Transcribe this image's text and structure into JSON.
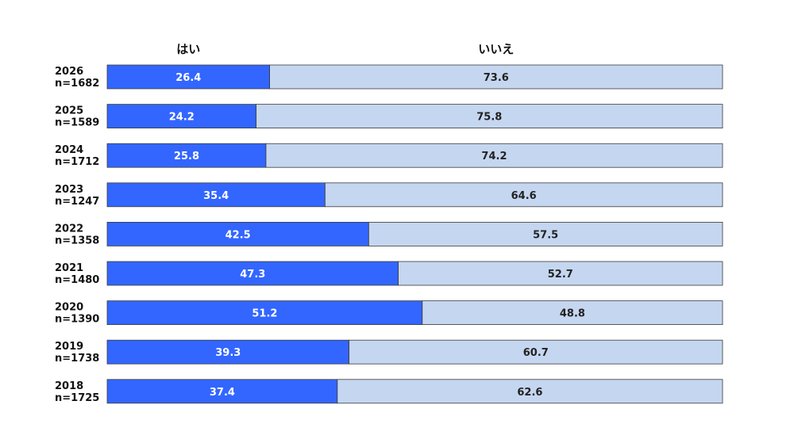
{
  "chart_data": {
    "type": "bar",
    "orientation": "horizontal",
    "stacked": "100%",
    "categories": [
      [
        "2026",
        "n=1682"
      ],
      [
        "2025",
        "n=1589"
      ],
      [
        "2024",
        "n=1712"
      ],
      [
        "2023",
        "n=1247"
      ],
      [
        "2022",
        "n=1358"
      ],
      [
        "2021",
        "n=1480"
      ],
      [
        "2020",
        "n=1390"
      ],
      [
        "2019",
        "n=1738"
      ],
      [
        "2018",
        "n=1725"
      ]
    ],
    "series": [
      {
        "name": "はい",
        "color": "#3366ff",
        "label_color": "#ffffff",
        "values": [
          26.4,
          24.2,
          25.8,
          35.4,
          42.5,
          47.3,
          51.2,
          39.3,
          37.4
        ]
      },
      {
        "name": "いいえ",
        "color": "#c5d6f0",
        "label_color": "#222222",
        "values": [
          73.6,
          75.8,
          74.2,
          64.6,
          57.5,
          52.7,
          48.8,
          60.7,
          62.6
        ]
      }
    ],
    "xlim": [
      0,
      100
    ],
    "grid": false,
    "legend_position": "top"
  }
}
